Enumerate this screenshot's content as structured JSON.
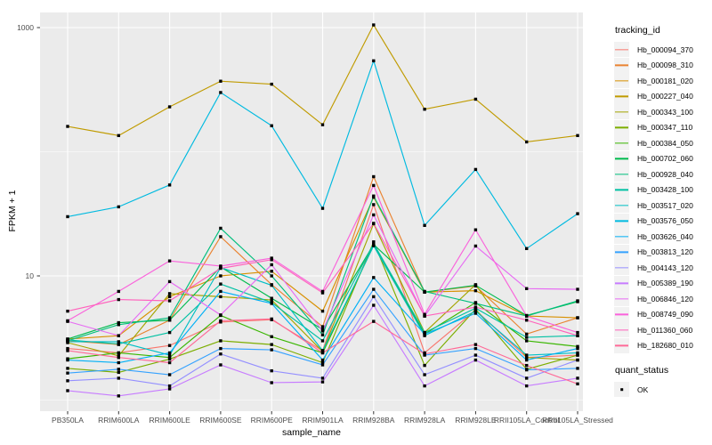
{
  "figure": {
    "bg": "#FFFFFF",
    "panel_bg": "#EBEBEB",
    "grid_color": "#FFFFFF",
    "axis_text_color": "#4D4D4D",
    "tick_color": "#333333",
    "point_color": "#000000",
    "legend_key_bg": "#F2F2F2"
  },
  "chart_data": {
    "type": "line",
    "title": "",
    "xlabel": "sample_name",
    "ylabel": "FPKM + 1",
    "y_scale": "log10",
    "grid": true,
    "legend_position": "right",
    "point_shape": "filled-square",
    "ylim": [
      0.81,
      1320
    ],
    "y_ticks": [
      {
        "value": 1000,
        "label": "1000"
      },
      {
        "value": 10,
        "label": "10"
      }
    ],
    "y_minor": [
      100,
      1
    ],
    "categories": [
      "PB350LA",
      "RRIM600LA",
      "RRIM600LE",
      "RRIM600SE",
      "RRIM600PE",
      "RRIM901LA",
      "RRIM928BA",
      "RRIM928LA",
      "RRIM928LE",
      "RRII105LA_Control",
      "RRII105LA_Stressed"
    ],
    "series": [
      {
        "name": "Hb_000094_370",
        "color": "#F8766D",
        "values": [
          2.6,
          2.4,
          2.75,
          4.25,
          4.44,
          2.5,
          37.5,
          2.4,
          5.3,
          2.2,
          2.3
        ]
      },
      {
        "name": "Hb_000098_310",
        "color": "#EA8331",
        "values": [
          3.0,
          2.8,
          4.4,
          20.7,
          8.5,
          3.9,
          63,
          7.4,
          8.3,
          3.4,
          4.6
        ]
      },
      {
        "name": "Hb_000181_020",
        "color": "#D89000",
        "values": [
          3.1,
          3.3,
          6.8,
          10.0,
          10.9,
          5.2,
          43,
          7.4,
          7.6,
          4.75,
          4.6
        ]
      },
      {
        "name": "Hb_000227_040",
        "color": "#C09B00",
        "values": [
          160,
          135,
          230,
          370,
          350,
          165,
          1050,
          220,
          265,
          120,
          135
        ]
      },
      {
        "name": "Hb_000343_100",
        "color": "#A3A500",
        "values": [
          2.9,
          2.27,
          7.2,
          6.8,
          6.4,
          2.46,
          26.3,
          3.5,
          8.5,
          2.2,
          2.1
        ]
      },
      {
        "name": "Hb_000347_110",
        "color": "#7CAE00",
        "values": [
          1.8,
          1.67,
          2.14,
          3.0,
          2.8,
          2.0,
          18.8,
          1.9,
          5.4,
          1.77,
          2.3
        ]
      },
      {
        "name": "Hb_000384_050",
        "color": "#39B600",
        "values": [
          2.15,
          2.4,
          2.2,
          4.8,
          3.24,
          2.4,
          17.6,
          3.4,
          6.1,
          3.0,
          2.7
        ]
      },
      {
        "name": "Hb_000702_060",
        "color": "#00BB4E",
        "values": [
          3.1,
          4.2,
          4.4,
          11.8,
          6.6,
          3.7,
          17.9,
          7.4,
          8.4,
          4.8,
          6.2
        ]
      },
      {
        "name": "Hb_000928_040",
        "color": "#00BF7D",
        "values": [
          3.0,
          4.05,
          4.6,
          24.2,
          10.0,
          3.35,
          44,
          7.5,
          6.0,
          4.75,
          6.3
        ]
      },
      {
        "name": "Hb_003428_100",
        "color": "#00C1A3",
        "values": [
          3.05,
          2.83,
          3.5,
          8.6,
          6.1,
          3.0,
          18.2,
          3.5,
          5.5,
          3.2,
          3.3
        ]
      },
      {
        "name": "Hb_003517_020",
        "color": "#00BFC4",
        "values": [
          2.95,
          2.95,
          2.3,
          11.7,
          8.4,
          2.5,
          17.5,
          3.3,
          5.2,
          2.3,
          2.4
        ]
      },
      {
        "name": "Hb_003576_050",
        "color": "#00BAE0",
        "values": [
          30,
          36,
          54,
          300,
          162,
          35,
          540,
          25.5,
          72,
          16.6,
          31.7
        ]
      },
      {
        "name": "Hb_003626_040",
        "color": "#00B0F6",
        "values": [
          2.1,
          2.0,
          2.4,
          7.5,
          6.0,
          2.1,
          9.7,
          3.4,
          5.0,
          2.1,
          2.6
        ]
      },
      {
        "name": "Hb_003813_120",
        "color": "#35A2FF",
        "values": [
          1.65,
          1.77,
          1.6,
          2.6,
          2.54,
          1.92,
          7.8,
          2.3,
          2.6,
          1.75,
          1.8
        ]
      },
      {
        "name": "Hb_004143_120",
        "color": "#9590FF",
        "values": [
          1.43,
          1.5,
          1.3,
          2.35,
          1.72,
          1.5,
          6.8,
          1.6,
          2.3,
          1.5,
          2.1
        ]
      },
      {
        "name": "Hb_005389_190",
        "color": "#C77CFF",
        "values": [
          1.19,
          1.08,
          1.23,
          1.92,
          1.38,
          1.4,
          5.8,
          1.3,
          2.1,
          1.3,
          1.5
        ]
      },
      {
        "name": "Hb_006846_120",
        "color": "#E76BF3",
        "values": [
          4.3,
          3.3,
          9.0,
          4.85,
          12.3,
          3.6,
          31,
          4.75,
          17.4,
          7.9,
          7.8
        ]
      },
      {
        "name": "Hb_008749_090",
        "color": "#FA62DB",
        "values": [
          4.35,
          7.5,
          13.2,
          12.0,
          13.9,
          7.5,
          53.5,
          4.9,
          23.5,
          4.75,
          3.5
        ]
      },
      {
        "name": "Hb_011360_060",
        "color": "#FF62BC",
        "values": [
          5.2,
          6.45,
          6.3,
          11.5,
          13.5,
          7.3,
          26.5,
          4.75,
          5.6,
          4.4,
          3.3
        ]
      },
      {
        "name": "Hb_182680_010",
        "color": "#FF6A98",
        "values": [
          2.5,
          2.2,
          2.0,
          4.35,
          4.5,
          2.4,
          4.3,
          2.35,
          2.8,
          1.9,
          1.35
        ]
      }
    ],
    "legend": {
      "color_title": "tracking_id",
      "shape_title": "quant_status",
      "shape_entries": [
        {
          "label": "OK"
        }
      ]
    }
  }
}
